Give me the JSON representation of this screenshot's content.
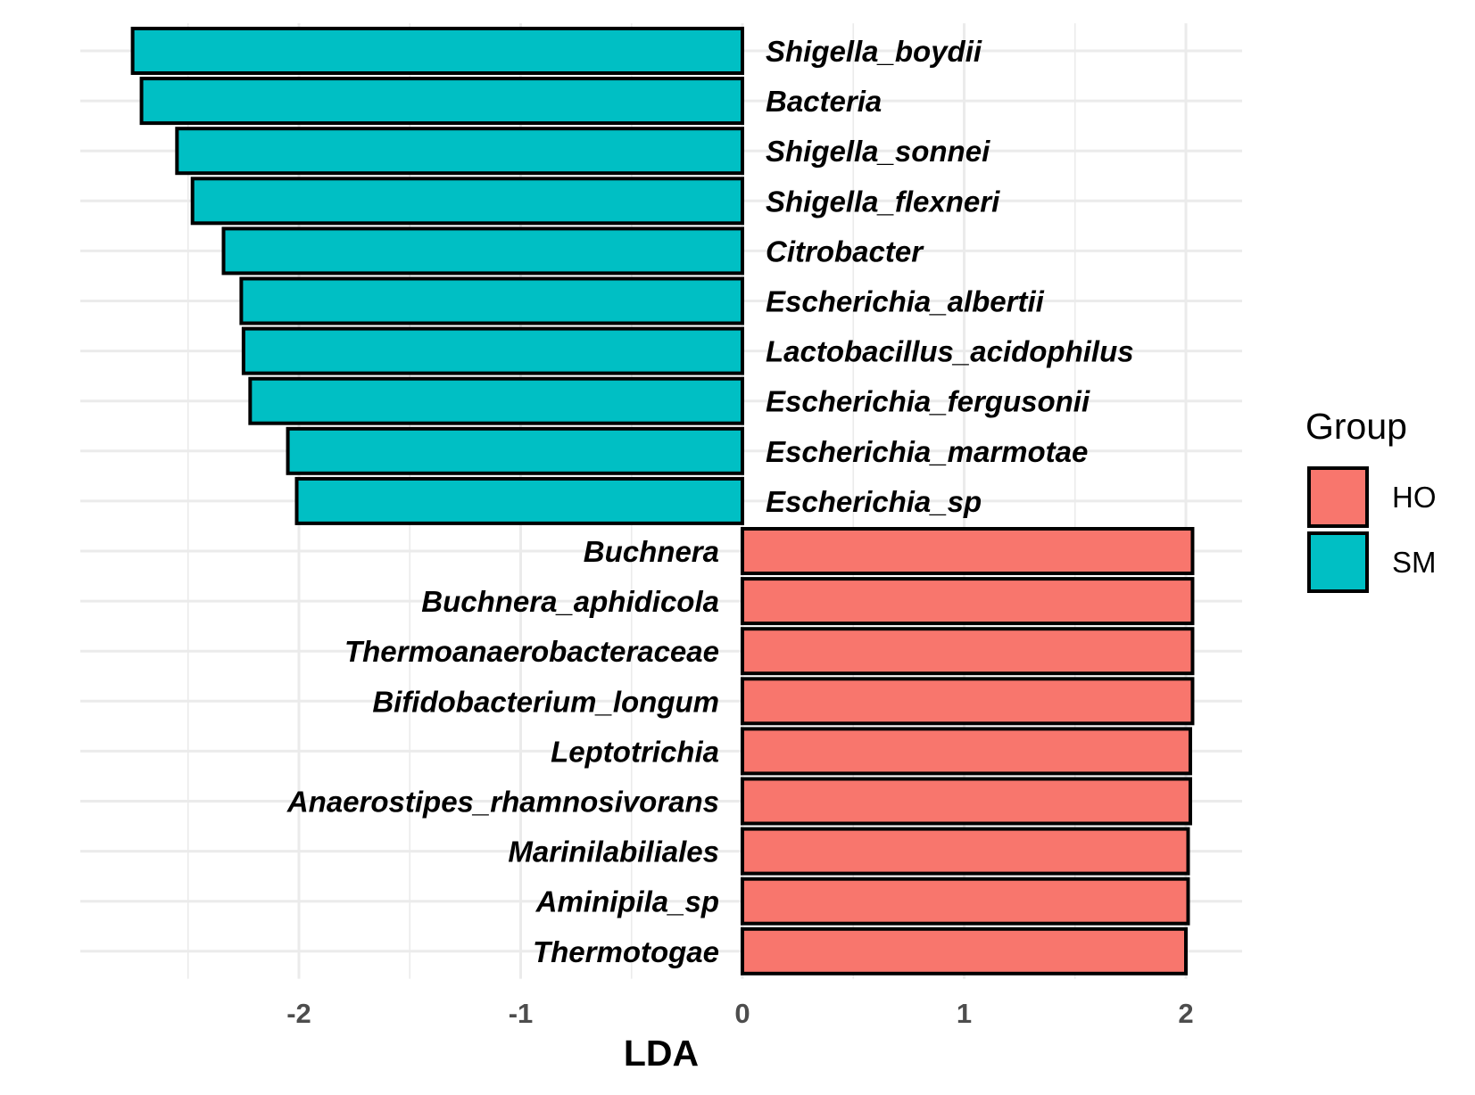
{
  "chart_data": {
    "type": "bar",
    "orientation": "horizontal",
    "xlabel": "LDA",
    "ylabel": "",
    "xlim": [
      -2.9,
      2.25
    ],
    "x_ticks": [
      -2,
      -1,
      0,
      1,
      2
    ],
    "x_tick_labels": [
      "-2",
      "-1",
      "0",
      "1",
      "2"
    ],
    "grid": true,
    "legend": {
      "title": "Group",
      "position": "right",
      "entries": [
        {
          "name": "HO",
          "color": "#F8766D"
        },
        {
          "name": "SM",
          "color": "#00BFC4"
        }
      ]
    },
    "bars": [
      {
        "label": "Shigella_boydii",
        "value": -2.75,
        "group": "SM"
      },
      {
        "label": "Bacteria",
        "value": -2.71,
        "group": "SM"
      },
      {
        "label": "Shigella_sonnei",
        "value": -2.55,
        "group": "SM"
      },
      {
        "label": "Shigella_flexneri",
        "value": -2.48,
        "group": "SM"
      },
      {
        "label": "Citrobacter",
        "value": -2.34,
        "group": "SM"
      },
      {
        "label": "Escherichia_albertii",
        "value": -2.26,
        "group": "SM"
      },
      {
        "label": "Lactobacillus_acidophilus",
        "value": -2.25,
        "group": "SM"
      },
      {
        "label": "Escherichia_fergusonii",
        "value": -2.22,
        "group": "SM"
      },
      {
        "label": "Escherichia_marmotae",
        "value": -2.05,
        "group": "SM"
      },
      {
        "label": "Escherichia_sp",
        "value": -2.01,
        "group": "SM"
      },
      {
        "label": "Buchnera",
        "value": 2.03,
        "group": "HO"
      },
      {
        "label": "Buchnera_aphidicola",
        "value": 2.03,
        "group": "HO"
      },
      {
        "label": "Thermoanaerobacteraceae",
        "value": 2.03,
        "group": "HO"
      },
      {
        "label": "Bifidobacterium_longum",
        "value": 2.03,
        "group": "HO"
      },
      {
        "label": "Leptotrichia",
        "value": 2.02,
        "group": "HO"
      },
      {
        "label": "Anaerostipes_rhamnosivorans",
        "value": 2.02,
        "group": "HO"
      },
      {
        "label": "Marinilabiliales",
        "value": 2.01,
        "group": "HO"
      },
      {
        "label": "Aminipila_sp",
        "value": 2.01,
        "group": "HO"
      },
      {
        "label": "Thermotogae",
        "value": 2.0,
        "group": "HO"
      }
    ]
  }
}
